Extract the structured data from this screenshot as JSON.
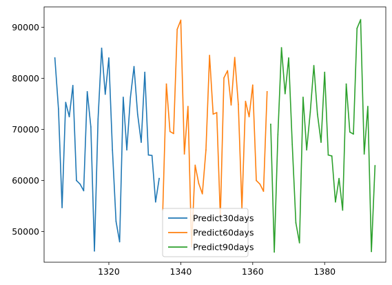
{
  "chart_data": {
    "type": "line",
    "title": "",
    "xlabel": "",
    "ylabel": "",
    "xlim": [
      1302,
      1397
    ],
    "ylim": [
      44000,
      94000
    ],
    "xticks": [
      1320,
      1340,
      1360,
      1380
    ],
    "xtick_labels": [
      "1320",
      "1340",
      "1360",
      "1380"
    ],
    "yticks": [
      50000,
      60000,
      70000,
      80000,
      90000
    ],
    "ytick_labels": [
      "50000",
      "60000",
      "70000",
      "80000",
      "90000"
    ],
    "grid": false,
    "legend_position": "lower-center",
    "series": [
      {
        "name": "Predict30days",
        "color": "#1f77b4",
        "x": [
          1305,
          1306,
          1307,
          1308,
          1309,
          1310,
          1311,
          1312,
          1313,
          1314,
          1315,
          1316,
          1317,
          1318,
          1319,
          1320,
          1321,
          1322,
          1323,
          1324,
          1325,
          1326,
          1327,
          1328,
          1329,
          1330,
          1331,
          1332,
          1333,
          1334
        ],
        "y": [
          84000,
          74000,
          54700,
          75300,
          72500,
          78600,
          60000,
          59300,
          58000,
          77400,
          70500,
          46200,
          72000,
          85900,
          76900,
          84000,
          66000,
          52000,
          48000,
          76300,
          66000,
          76300,
          82300,
          73000,
          67500,
          81200,
          65000,
          64900,
          55800,
          60400
        ]
      },
      {
        "name": "Predict60days",
        "color": "#ff7f0e",
        "x": [
          1335,
          1336,
          1337,
          1338,
          1339,
          1340,
          1341,
          1342,
          1343,
          1344,
          1345,
          1346,
          1347,
          1348,
          1349,
          1350,
          1351,
          1352,
          1353,
          1354,
          1355,
          1356,
          1357,
          1358,
          1359,
          1360,
          1361,
          1362,
          1363,
          1364
        ],
        "y": [
          54200,
          78900,
          69600,
          69200,
          89600,
          91400,
          65200,
          74500,
          47000,
          63000,
          59400,
          57400,
          66000,
          84500,
          73000,
          73300,
          52700,
          80100,
          81500,
          74800,
          84100,
          74900,
          54500,
          75500,
          72500,
          78700,
          60000,
          59300,
          57900,
          77400
        ]
      },
      {
        "name": "Predict90days",
        "color": "#2ca02c",
        "x": [
          1365,
          1366,
          1367,
          1368,
          1369,
          1370,
          1371,
          1372,
          1373,
          1374,
          1375,
          1376,
          1377,
          1378,
          1379,
          1380,
          1381,
          1382,
          1383,
          1384,
          1385,
          1386,
          1387,
          1388,
          1389,
          1390,
          1391,
          1392,
          1393,
          1394
        ],
        "y": [
          71000,
          46000,
          69000,
          86000,
          77000,
          84000,
          67000,
          51700,
          47800,
          76300,
          66000,
          73400,
          82500,
          73000,
          67500,
          81200,
          65000,
          64800,
          55800,
          60400,
          54200,
          78900,
          69500,
          69100,
          89800,
          91500,
          65200,
          74500,
          46100,
          62900
        ]
      }
    ]
  }
}
